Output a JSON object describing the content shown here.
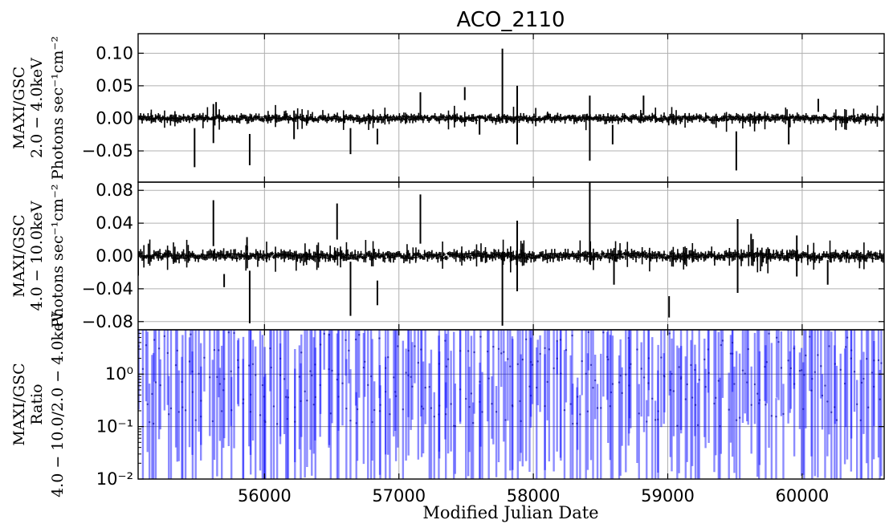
{
  "chart_data": {
    "title": "ACO_2110",
    "xlabel": "Modified Julian Date",
    "xlim": [
      55060,
      60610
    ],
    "x_ticks": [
      56000,
      57000,
      58000,
      59000,
      60000
    ],
    "x_tick_labels": [
      "56000",
      "57000",
      "58000",
      "59000",
      "60000"
    ],
    "grid": true,
    "panels": [
      {
        "type": "scatter",
        "ylabel": [
          "MAXI/GSC",
          "2.0 − 4.0keV",
          "Photons sec⁻¹cm⁻²"
        ],
        "ylim": [
          -0.098,
          0.13
        ],
        "y_ticks": [
          -0.05,
          0.0,
          0.05,
          0.1
        ],
        "y_tick_labels": [
          "−0.05",
          "0.00",
          "0.05",
          "0.10"
        ],
        "color": "#000000",
        "outliers": [
          {
            "x": 55480,
            "y": -0.045,
            "err": 0.03
          },
          {
            "x": 55620,
            "y": -0.008,
            "err": 0.03
          },
          {
            "x": 55640,
            "y": 0.015,
            "err": 0.01
          },
          {
            "x": 55890,
            "y": -0.048,
            "err": 0.024
          },
          {
            "x": 56220,
            "y": -0.01,
            "err": 0.022
          },
          {
            "x": 56640,
            "y": -0.035,
            "err": 0.02
          },
          {
            "x": 56840,
            "y": -0.028,
            "err": 0.012
          },
          {
            "x": 57160,
            "y": 0.02,
            "err": 0.02
          },
          {
            "x": 57490,
            "y": 0.038,
            "err": 0.01
          },
          {
            "x": 57600,
            "y": -0.01,
            "err": 0.015
          },
          {
            "x": 57770,
            "y": 0.05,
            "err": 0.057
          },
          {
            "x": 57880,
            "y": 0.005,
            "err": 0.045
          },
          {
            "x": 58420,
            "y": -0.015,
            "err": 0.05
          },
          {
            "x": 58590,
            "y": -0.025,
            "err": 0.015
          },
          {
            "x": 58820,
            "y": 0.02,
            "err": 0.015
          },
          {
            "x": 59510,
            "y": -0.05,
            "err": 0.03
          },
          {
            "x": 59900,
            "y": -0.02,
            "err": 0.02
          },
          {
            "x": 60120,
            "y": 0.02,
            "err": 0.01
          }
        ]
      },
      {
        "type": "scatter",
        "ylabel": [
          "MAXI/GSC",
          "4.0 − 10.0keV",
          "Photons sec⁻¹cm⁻²"
        ],
        "ylim": [
          -0.09,
          0.09
        ],
        "y_ticks": [
          -0.08,
          -0.04,
          0.0,
          0.04,
          0.08
        ],
        "y_tick_labels": [
          "−0.08",
          "−0.04",
          "0.00",
          "0.04",
          "0.08"
        ],
        "color": "#000000",
        "outliers": [
          {
            "x": 55060,
            "y": -0.012,
            "err": 0.012
          },
          {
            "x": 55620,
            "y": 0.04,
            "err": 0.028
          },
          {
            "x": 55700,
            "y": -0.03,
            "err": 0.008
          },
          {
            "x": 55890,
            "y": -0.05,
            "err": 0.032
          },
          {
            "x": 55870,
            "y": 0.015,
            "err": 0.008
          },
          {
            "x": 56540,
            "y": 0.042,
            "err": 0.022
          },
          {
            "x": 56640,
            "y": -0.04,
            "err": 0.033
          },
          {
            "x": 56840,
            "y": -0.045,
            "err": 0.015
          },
          {
            "x": 57160,
            "y": 0.045,
            "err": 0.03
          },
          {
            "x": 57770,
            "y": -0.04,
            "err": 0.045
          },
          {
            "x": 57880,
            "y": 0.0,
            "err": 0.043
          },
          {
            "x": 58420,
            "y": 0.04,
            "err": 0.05
          },
          {
            "x": 58600,
            "y": -0.02,
            "err": 0.015
          },
          {
            "x": 59010,
            "y": -0.062,
            "err": 0.013
          },
          {
            "x": 59520,
            "y": 0.0,
            "err": 0.045
          },
          {
            "x": 59620,
            "y": 0.015,
            "err": 0.012
          },
          {
            "x": 59960,
            "y": 0.0,
            "err": 0.025
          },
          {
            "x": 60190,
            "y": -0.02,
            "err": 0.015
          }
        ]
      },
      {
        "type": "scatter",
        "ylabel": [
          "MAXI/GSC",
          "Ratio",
          "4.0 − 10.0/2.0 − 4.0keV"
        ],
        "yscale": "log",
        "ylim": [
          0.01,
          7
        ],
        "y_ticks": [
          0.01,
          0.1,
          1
        ],
        "y_tick_labels": [
          "10⁻²",
          "10⁻¹",
          "10⁰"
        ],
        "color": "#0000ff"
      }
    ]
  }
}
